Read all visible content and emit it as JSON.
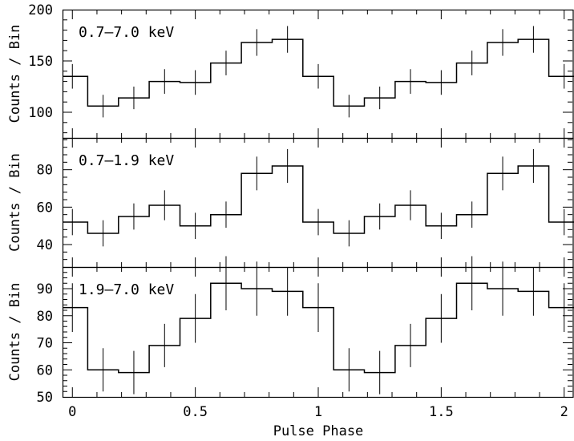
{
  "chart_data": [
    {
      "type": "line",
      "step": true,
      "band_label": "0.7–7.0 keV",
      "ylabel": "Counts / Bin",
      "ylim": [
        75,
        200
      ],
      "yticks": [
        100,
        150,
        200
      ],
      "x": [
        0,
        0.125,
        0.25,
        0.375,
        0.5,
        0.625,
        0.75,
        0.875,
        1,
        1.125,
        1.25,
        1.375,
        1.5,
        1.625,
        1.75,
        1.875,
        2
      ],
      "values": [
        135,
        106,
        114,
        130,
        129,
        148,
        168,
        171,
        135,
        106,
        114,
        130,
        129,
        148,
        168,
        171,
        135
      ],
      "errors": [
        12,
        11,
        11,
        12,
        12,
        12,
        13,
        13,
        12,
        11,
        11,
        12,
        12,
        12,
        13,
        13,
        12
      ]
    },
    {
      "type": "line",
      "step": true,
      "band_label": "0.7–1.9 keV",
      "ylabel": "Counts / Bin",
      "ylim": [
        28,
        97
      ],
      "yticks": [
        40,
        60,
        80
      ],
      "x": [
        0,
        0.125,
        0.25,
        0.375,
        0.5,
        0.625,
        0.75,
        0.875,
        1,
        1.125,
        1.25,
        1.375,
        1.5,
        1.625,
        1.75,
        1.875,
        2
      ],
      "values": [
        52,
        46,
        55,
        61,
        50,
        56,
        78,
        82,
        52,
        46,
        55,
        61,
        50,
        56,
        78,
        82,
        52
      ],
      "errors": [
        7,
        7,
        7,
        8,
        7,
        7,
        9,
        9,
        7,
        7,
        7,
        8,
        7,
        7,
        9,
        9,
        7
      ]
    },
    {
      "type": "line",
      "step": true,
      "band_label": "1.9–7.0 keV",
      "ylabel": "Counts / Bin",
      "xlabel": "Pulse Phase",
      "ylim": [
        50,
        98
      ],
      "yticks": [
        50,
        60,
        70,
        80,
        90
      ],
      "xlim": [
        -0.04,
        2.04
      ],
      "xticks": [
        0,
        0.5,
        1,
        1.5,
        2
      ],
      "xtick_labels": [
        "0",
        "0.5",
        "1",
        "1.5",
        "2"
      ],
      "x": [
        0,
        0.125,
        0.25,
        0.375,
        0.5,
        0.625,
        0.75,
        0.875,
        1,
        1.125,
        1.25,
        1.375,
        1.5,
        1.625,
        1.75,
        1.875,
        2
      ],
      "values": [
        83,
        60,
        59,
        69,
        79,
        92,
        90,
        89,
        83,
        60,
        59,
        69,
        79,
        92,
        90,
        89,
        83
      ],
      "errors": [
        9,
        8,
        8,
        8,
        9,
        10,
        10,
        9,
        9,
        8,
        8,
        8,
        9,
        10,
        10,
        9,
        9
      ]
    }
  ]
}
